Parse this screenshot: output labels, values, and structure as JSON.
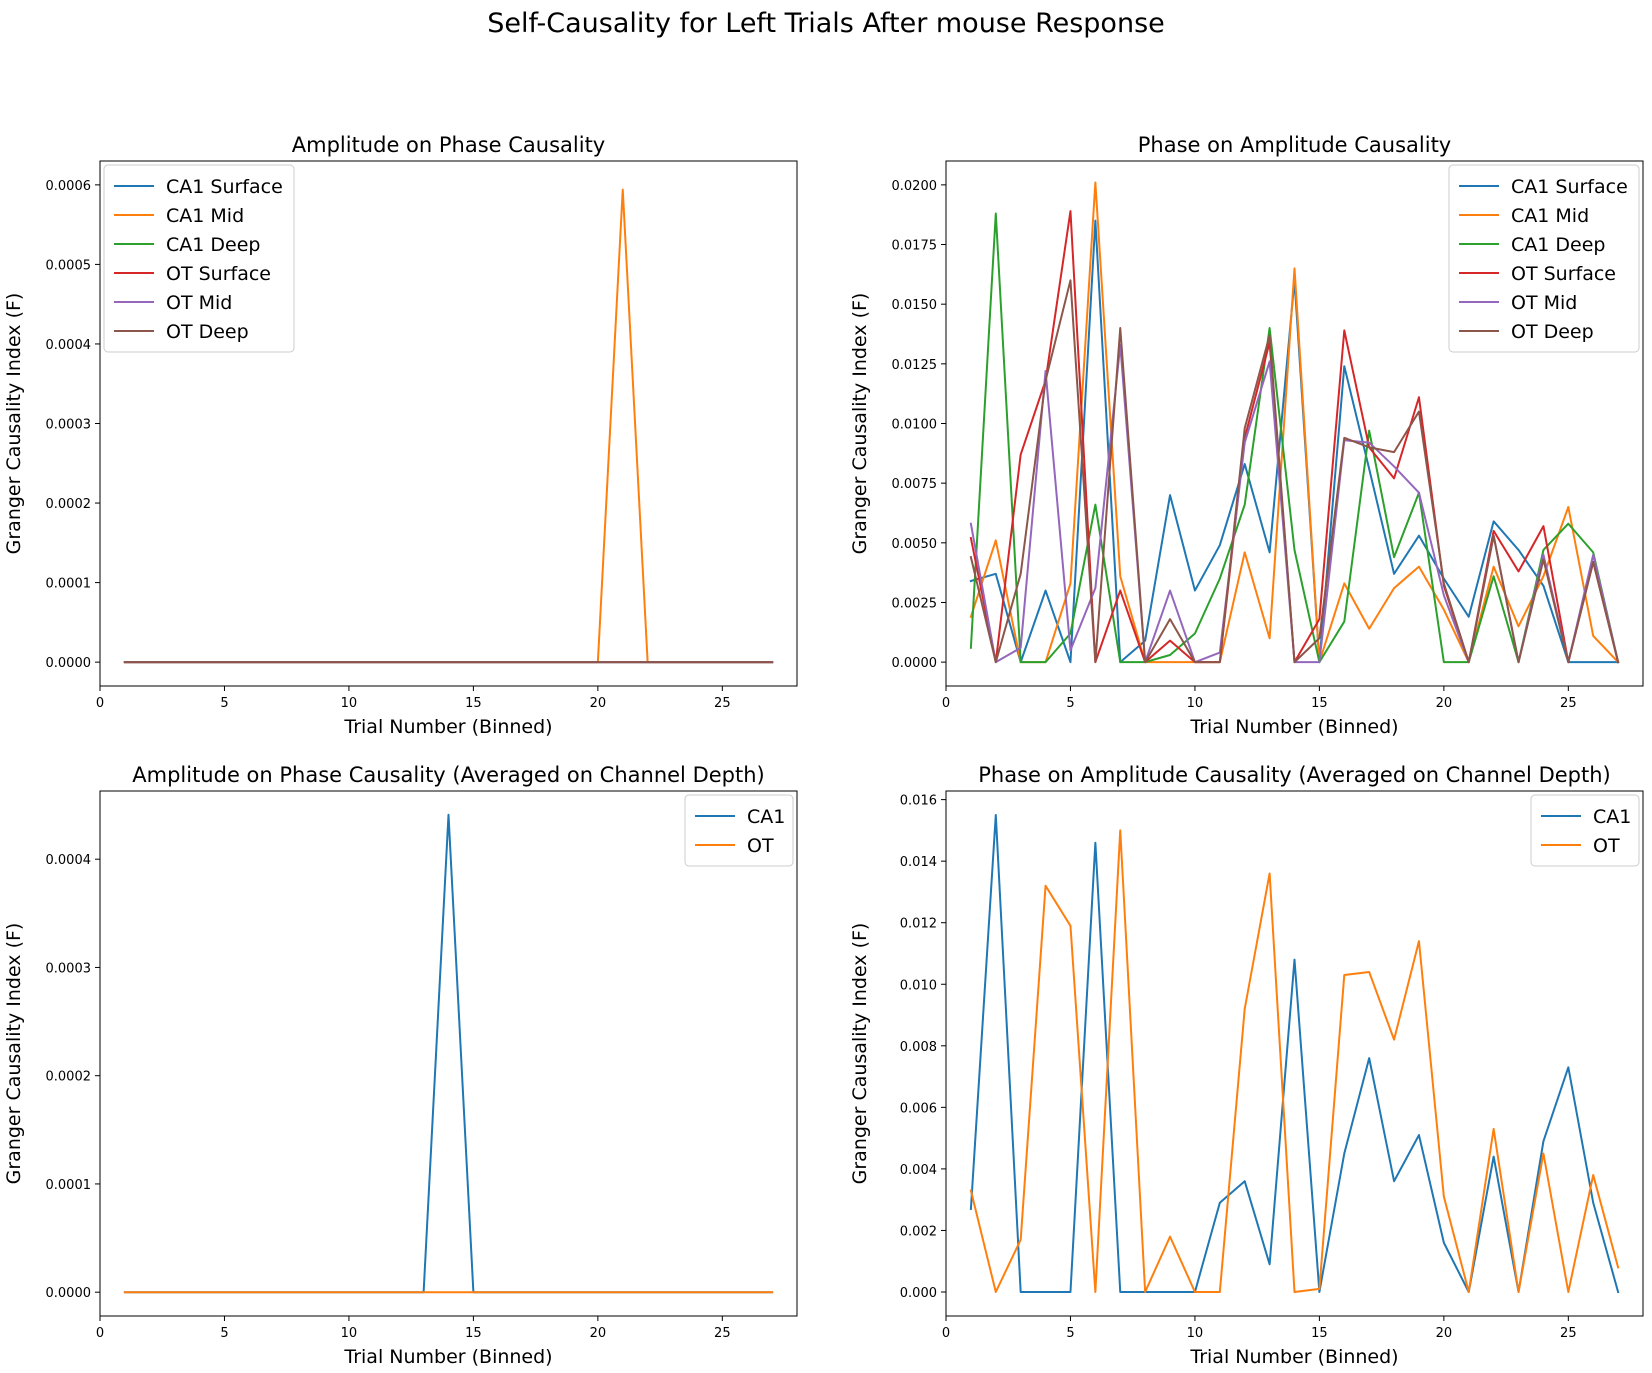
{
  "suptitle": "Self-Causality for Left Trials After mouse Response",
  "colors": {
    "CA1 Surface": "#1f77b4",
    "CA1 Mid": "#ff7f0e",
    "CA1 Deep": "#2ca02c",
    "OT Surface": "#d62728",
    "OT Mid": "#9467bd",
    "OT Deep": "#8c564b",
    "CA1": "#1f77b4",
    "OT": "#ff7f0e"
  },
  "chart_data": [
    {
      "type": "line",
      "title": "Amplitude on Phase Causality",
      "xlabel": "Trial Number (Binned)",
      "ylabel": "Granger Causality Index (F)",
      "xlim": [
        0,
        28
      ],
      "ylim": [
        -3e-05,
        0.00063
      ],
      "xticks": [
        0,
        5,
        10,
        15,
        20,
        25
      ],
      "yticks": [
        0,
        0.0001,
        0.0002,
        0.0003,
        0.0004,
        0.0005,
        0.0006
      ],
      "ytick_labels": [
        "0.0000",
        "0.0001",
        "0.0002",
        "0.0003",
        "0.0004",
        "0.0005",
        "0.0006"
      ],
      "legend_position": "upper-left",
      "x": [
        1,
        2,
        3,
        4,
        5,
        6,
        7,
        8,
        9,
        10,
        11,
        12,
        13,
        14,
        15,
        16,
        17,
        18,
        19,
        20,
        21,
        22,
        23,
        24,
        25,
        26,
        27
      ],
      "series": [
        {
          "name": "CA1 Surface",
          "values": [
            0,
            0,
            0,
            0,
            0,
            0,
            0,
            0,
            0,
            0,
            0,
            0,
            0,
            0,
            0,
            0,
            0,
            0,
            0,
            0,
            0,
            0,
            0,
            0,
            0,
            0,
            0
          ]
        },
        {
          "name": "CA1 Mid",
          "values": [
            0,
            0,
            0,
            0,
            0,
            0,
            0,
            0,
            0,
            0,
            0,
            0,
            0,
            0,
            0,
            0,
            0,
            0,
            0,
            0,
            0.000594,
            0,
            0,
            0,
            0,
            0,
            0
          ]
        },
        {
          "name": "CA1 Deep",
          "values": [
            0,
            0,
            0,
            0,
            0,
            0,
            0,
            0,
            0,
            0,
            0,
            0,
            0,
            0,
            0,
            0,
            0,
            0,
            0,
            0,
            0,
            0,
            0,
            0,
            0,
            0,
            0
          ]
        },
        {
          "name": "OT Surface",
          "values": [
            0,
            0,
            0,
            0,
            0,
            0,
            0,
            0,
            0,
            0,
            0,
            0,
            0,
            0,
            0,
            0,
            0,
            0,
            0,
            0,
            0,
            0,
            0,
            0,
            0,
            0,
            0
          ]
        },
        {
          "name": "OT Mid",
          "values": [
            0,
            0,
            0,
            0,
            0,
            0,
            0,
            0,
            0,
            0,
            0,
            0,
            0,
            0,
            0,
            0,
            0,
            0,
            0,
            0,
            0,
            0,
            0,
            0,
            0,
            0,
            0
          ]
        },
        {
          "name": "OT Deep",
          "values": [
            0,
            0,
            0,
            0,
            0,
            0,
            0,
            0,
            0,
            0,
            0,
            0,
            0,
            0,
            0,
            0,
            0,
            0,
            0,
            0,
            0,
            0,
            0,
            0,
            0,
            0,
            0
          ]
        }
      ]
    },
    {
      "type": "line",
      "title": "Phase on Amplitude Causality",
      "xlabel": "Trial Number (Binned)",
      "ylabel": "Granger Causality Index (F)",
      "xlim": [
        0,
        28
      ],
      "ylim": [
        -0.001,
        0.021
      ],
      "xticks": [
        0,
        5,
        10,
        15,
        20,
        25
      ],
      "yticks": [
        0,
        0.0025,
        0.005,
        0.0075,
        0.01,
        0.0125,
        0.015,
        0.0175,
        0.02
      ],
      "ytick_labels": [
        "0.0000",
        "0.0025",
        "0.0050",
        "0.0075",
        "0.0100",
        "0.0125",
        "0.0150",
        "0.0175",
        "0.0200"
      ],
      "legend_position": "upper-right",
      "x": [
        1,
        2,
        3,
        4,
        5,
        6,
        7,
        8,
        9,
        10,
        11,
        12,
        13,
        14,
        15,
        16,
        17,
        18,
        19,
        20,
        21,
        22,
        23,
        24,
        25,
        26,
        27
      ],
      "series": [
        {
          "name": "CA1 Surface",
          "values": [
            0.0034,
            0.0037,
            0,
            0.003,
            0,
            0.0185,
            0,
            0.0009,
            0.007,
            0.003,
            0.0049,
            0.0083,
            0.0046,
            0.016,
            0,
            0.0124,
            0.0081,
            0.0037,
            0.0053,
            0.0035,
            0.0019,
            0.0059,
            0.0047,
            0.0032,
            0,
            0,
            0
          ]
        },
        {
          "name": "CA1 Mid",
          "values": [
            0.0019,
            0.0051,
            0,
            0,
            0.0033,
            0.0201,
            0.0036,
            0,
            0,
            0,
            0,
            0.0046,
            0.001,
            0.0165,
            0,
            0.0033,
            0.0014,
            0.0031,
            0.004,
            0.0022,
            0,
            0.004,
            0.0015,
            0.0036,
            0.0065,
            0.0011,
            0
          ]
        },
        {
          "name": "CA1 Deep",
          "values": [
            0.0006,
            0.0188,
            0,
            0,
            0.0012,
            0.0066,
            0,
            0,
            0.0003,
            0.0012,
            0.0035,
            0.0066,
            0.014,
            0.0047,
            0,
            0.0017,
            0.0097,
            0.0044,
            0.0071,
            0,
            0,
            0.0036,
            0,
            0.0047,
            0.0058,
            0.0046,
            0
          ]
        },
        {
          "name": "OT Surface",
          "values": [
            0.0052,
            0,
            0.0087,
            0.0118,
            0.0189,
            0,
            0.003,
            0,
            0.0009,
            0,
            0,
            0.0094,
            0.0134,
            0,
            0.0018,
            0.0139,
            0.009,
            0.0077,
            0.0111,
            0.0032,
            0,
            0.0055,
            0.0038,
            0.0057,
            0,
            0.0042,
            0
          ]
        },
        {
          "name": "OT Mid",
          "values": [
            0.0058,
            0,
            0.0006,
            0.0122,
            0.0005,
            0.0031,
            0.0133,
            0,
            0.003,
            0,
            0.0004,
            0.0092,
            0.0126,
            0,
            0,
            0.0093,
            0.0092,
            0.0082,
            0.0071,
            0.0028,
            0,
            0.0053,
            0,
            0.0045,
            0,
            0.0045,
            0
          ]
        },
        {
          "name": "OT Deep",
          "values": [
            0.0044,
            0,
            0.0037,
            0.0118,
            0.016,
            0,
            0.014,
            0,
            0.0018,
            0,
            0,
            0.0098,
            0.0137,
            0,
            0.001,
            0.0094,
            0.009,
            0.0088,
            0.0105,
            0.0033,
            0,
            0.0053,
            0,
            0.0043,
            0,
            0.0042,
            0
          ]
        }
      ]
    },
    {
      "type": "line",
      "title": "Amplitude on Phase Causality (Averaged on Channel Depth)",
      "xlabel": "Trial Number (Binned)",
      "ylabel": "Granger Causality Index (F)",
      "xlim": [
        0,
        28
      ],
      "ylim": [
        -2.2e-05,
        0.000463
      ],
      "xticks": [
        0,
        5,
        10,
        15,
        20,
        25
      ],
      "yticks": [
        0,
        0.0001,
        0.0002,
        0.0003,
        0.0004
      ],
      "ytick_labels": [
        "0.0000",
        "0.0001",
        "0.0002",
        "0.0003",
        "0.0004"
      ],
      "legend_position": "upper-right",
      "x": [
        1,
        2,
        3,
        4,
        5,
        6,
        7,
        8,
        9,
        10,
        11,
        12,
        13,
        14,
        15,
        16,
        17,
        18,
        19,
        20,
        21,
        22,
        23,
        24,
        25,
        26,
        27
      ],
      "series": [
        {
          "name": "CA1",
          "values": [
            0,
            0,
            0,
            0,
            0,
            0,
            0,
            0,
            0,
            0,
            0,
            0,
            0,
            0.000441,
            0,
            0,
            0,
            0,
            0,
            0,
            0,
            0,
            0,
            0,
            0,
            0,
            0
          ]
        },
        {
          "name": "OT",
          "values": [
            0,
            0,
            0,
            0,
            0,
            0,
            0,
            0,
            0,
            0,
            0,
            0,
            0,
            0,
            0,
            0,
            0,
            0,
            0,
            0,
            0,
            0,
            0,
            0,
            0,
            0,
            0
          ]
        }
      ]
    },
    {
      "type": "line",
      "title": "Phase on Amplitude Causality (Averaged on Channel Depth)",
      "xlabel": "Trial Number (Binned)",
      "ylabel": "Granger Causality Index (F)",
      "xlim": [
        0,
        28
      ],
      "ylim": [
        -0.00078,
        0.01628
      ],
      "xticks": [
        0,
        5,
        10,
        15,
        20,
        25
      ],
      "yticks": [
        0,
        0.002,
        0.004,
        0.006,
        0.008,
        0.01,
        0.012,
        0.014,
        0.016
      ],
      "ytick_labels": [
        "0.000",
        "0.002",
        "0.004",
        "0.006",
        "0.008",
        "0.010",
        "0.012",
        "0.014",
        "0.016"
      ],
      "legend_position": "upper-right",
      "x": [
        1,
        2,
        3,
        4,
        5,
        6,
        7,
        8,
        9,
        10,
        11,
        12,
        13,
        14,
        15,
        16,
        17,
        18,
        19,
        20,
        21,
        22,
        23,
        24,
        25,
        26,
        27
      ],
      "series": [
        {
          "name": "CA1",
          "values": [
            0.0027,
            0.0155,
            0,
            0,
            0,
            0.0146,
            0,
            0,
            0,
            0,
            0.0029,
            0.0036,
            0.0009,
            0.0108,
            0,
            0.0045,
            0.0076,
            0.0036,
            0.0051,
            0.0016,
            0,
            0.0044,
            0,
            0.0049,
            0.0073,
            0.0029,
            0
          ]
        },
        {
          "name": "OT",
          "values": [
            0.0033,
            0,
            0.0017,
            0.0132,
            0.0119,
            0,
            0.015,
            0,
            0.0018,
            0,
            0,
            0.0092,
            0.0136,
            0,
            0.0001,
            0.0103,
            0.0104,
            0.0082,
            0.0114,
            0.0031,
            0,
            0.0053,
            0,
            0.0045,
            0,
            0.0038,
            0.0008
          ]
        }
      ]
    }
  ]
}
